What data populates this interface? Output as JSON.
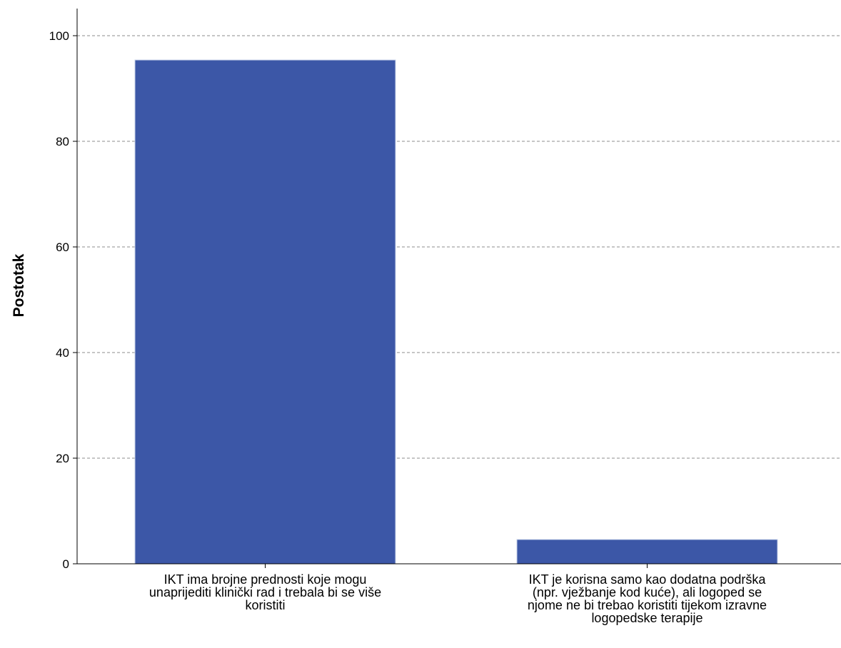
{
  "chart_data": {
    "type": "bar",
    "ylabel": "Postotak",
    "xlabel": "",
    "ylim": [
      0,
      105
    ],
    "yticks": [
      0,
      20,
      40,
      60,
      80,
      100
    ],
    "grid": true,
    "bar_color": "#3c57a7",
    "categories": [
      [
        "IKT ima brojne prednosti koje mogu",
        "unaprijediti klinički rad i trebala bi se više",
        "koristiti"
      ],
      [
        "IKT je korisna samo kao dodatna podrška",
        "(npr. vježbanje kod kuće), ali logoped se",
        "njome ne bi trebao koristiti tijekom izravne",
        "logopedske terapije"
      ]
    ],
    "values": [
      95.4,
      4.6
    ]
  }
}
